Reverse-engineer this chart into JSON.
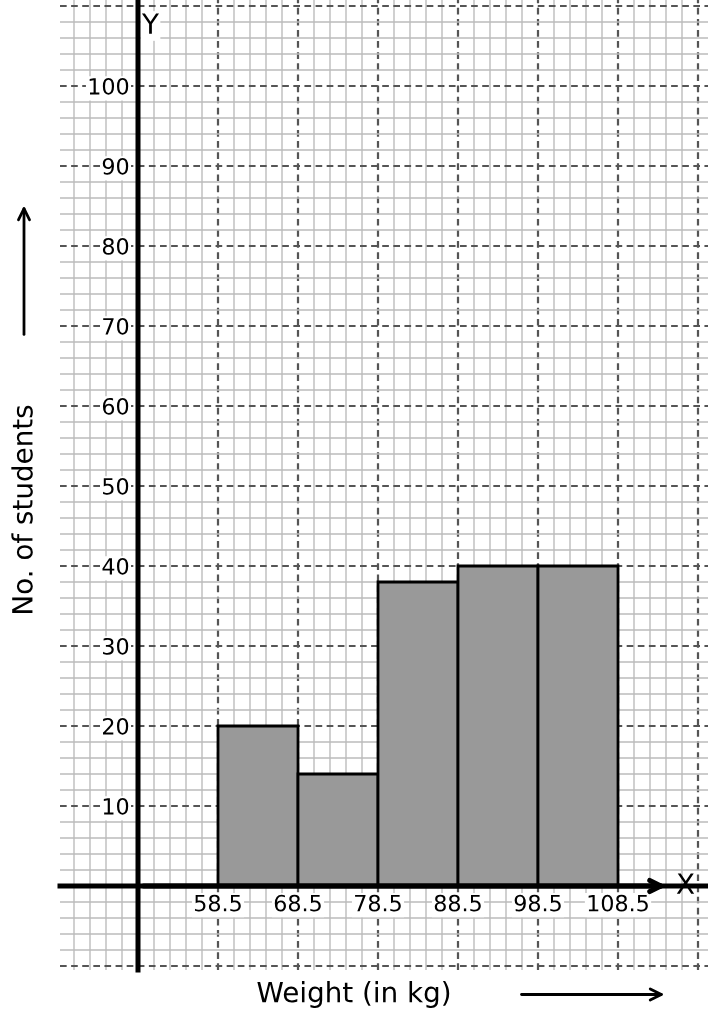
{
  "chart_data": {
    "type": "histogram",
    "xlabel": "Weight (in kg)",
    "ylabel": "No. of students",
    "bins": [
      58.5,
      68.5,
      78.5,
      88.5,
      98.5,
      108.5
    ],
    "values": [
      20,
      14,
      38,
      40,
      40
    ],
    "color": "#999999",
    "xlim": [
      38.75,
      119.75
    ],
    "ylim": [
      -10.5,
      110.75
    ],
    "xticks": [
      58.5,
      68.5,
      78.5,
      88.5,
      98.5,
      108.5
    ],
    "yticks": [
      10,
      20,
      30,
      40,
      50,
      60,
      70,
      80,
      90,
      100
    ],
    "grid": true,
    "annotations": [
      "X",
      "Y"
    ]
  }
}
